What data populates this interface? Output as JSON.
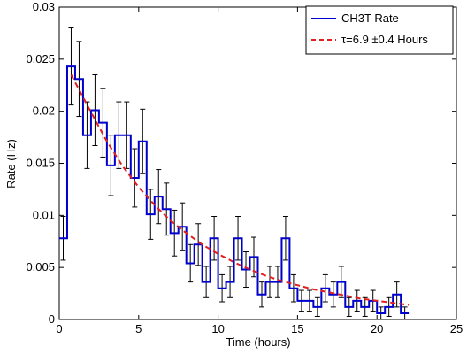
{
  "chart_data": {
    "type": "line",
    "title": "",
    "xlabel": "Time (hours)",
    "ylabel": "Rate (Hz)",
    "xlim": [
      0,
      25
    ],
    "ylim": [
      0,
      0.03
    ],
    "x_ticks": [
      "0",
      "5",
      "10",
      "15",
      "20",
      "25"
    ],
    "y_ticks": [
      "0",
      "0.005",
      "0.01",
      "0.015",
      "0.02",
      "0.025",
      "0.03"
    ],
    "grid": false,
    "legend_position": "top-right",
    "series": [
      {
        "name": "CH3T Rate",
        "style": "step",
        "color": "#0000cc",
        "bin_edges": [
          0,
          0.5,
          1.0,
          1.5,
          2.0,
          2.5,
          3.0,
          3.5,
          4.0,
          4.5,
          5.0,
          5.5,
          6.0,
          6.5,
          7.0,
          7.5,
          8.0,
          8.5,
          9.0,
          9.5,
          10.0,
          10.5,
          11.0,
          11.5,
          12.0,
          12.5,
          13.0,
          13.5,
          14.0,
          14.5,
          15.0,
          15.5,
          16.0,
          16.5,
          17.0,
          17.5,
          18.0,
          18.5,
          19.0,
          19.5,
          20.0,
          20.5,
          21.0,
          21.5,
          22.0
        ],
        "values": [
          0.0078,
          0.0243,
          0.0231,
          0.0177,
          0.0201,
          0.0189,
          0.0148,
          0.0177,
          0.0177,
          0.0136,
          0.0171,
          0.0101,
          0.0118,
          0.0106,
          0.0083,
          0.0089,
          0.0054,
          0.0072,
          0.0036,
          0.0078,
          0.003,
          0.0036,
          0.0078,
          0.0048,
          0.006,
          0.0024,
          0.0036,
          0.0036,
          0.0078,
          0.003,
          0.0018,
          0.0018,
          0.0012,
          0.003,
          0.0024,
          0.0036,
          0.0012,
          0.0018,
          0.0012,
          0.0018,
          0.0006,
          0.0012,
          0.0024,
          0.0006
        ],
        "errors": [
          0.0021,
          0.0037,
          0.0036,
          0.0032,
          0.0034,
          0.0033,
          0.0029,
          0.0032,
          0.0032,
          0.0028,
          0.0031,
          0.0024,
          0.0026,
          0.0025,
          0.0022,
          0.0023,
          0.0018,
          0.002,
          0.0015,
          0.0021,
          0.0013,
          0.0015,
          0.0021,
          0.0017,
          0.0019,
          0.0012,
          0.0015,
          0.0015,
          0.0021,
          0.0013,
          0.001,
          0.001,
          0.0009,
          0.0013,
          0.0012,
          0.0015,
          0.0009,
          0.001,
          0.0009,
          0.001,
          0.0006,
          0.0009,
          0.0012,
          0.0006
        ]
      },
      {
        "name": "τ=6.9  ±0.4 Hours",
        "style": "dashed",
        "color": "#e02020",
        "x": [
          0.75,
          2,
          3,
          4,
          5,
          6,
          7,
          8,
          9,
          10,
          11,
          12,
          13,
          14,
          15,
          16,
          17,
          18,
          19,
          20,
          21,
          22
        ],
        "y": [
          0.0235,
          0.0199,
          0.0171,
          0.0147,
          0.0127,
          0.011,
          0.0095,
          0.0083,
          0.0072,
          0.0063,
          0.0055,
          0.0048,
          0.0042,
          0.0037,
          0.0033,
          0.0029,
          0.0026,
          0.0023,
          0.002,
          0.0018,
          0.0016,
          0.0014
        ]
      }
    ]
  }
}
